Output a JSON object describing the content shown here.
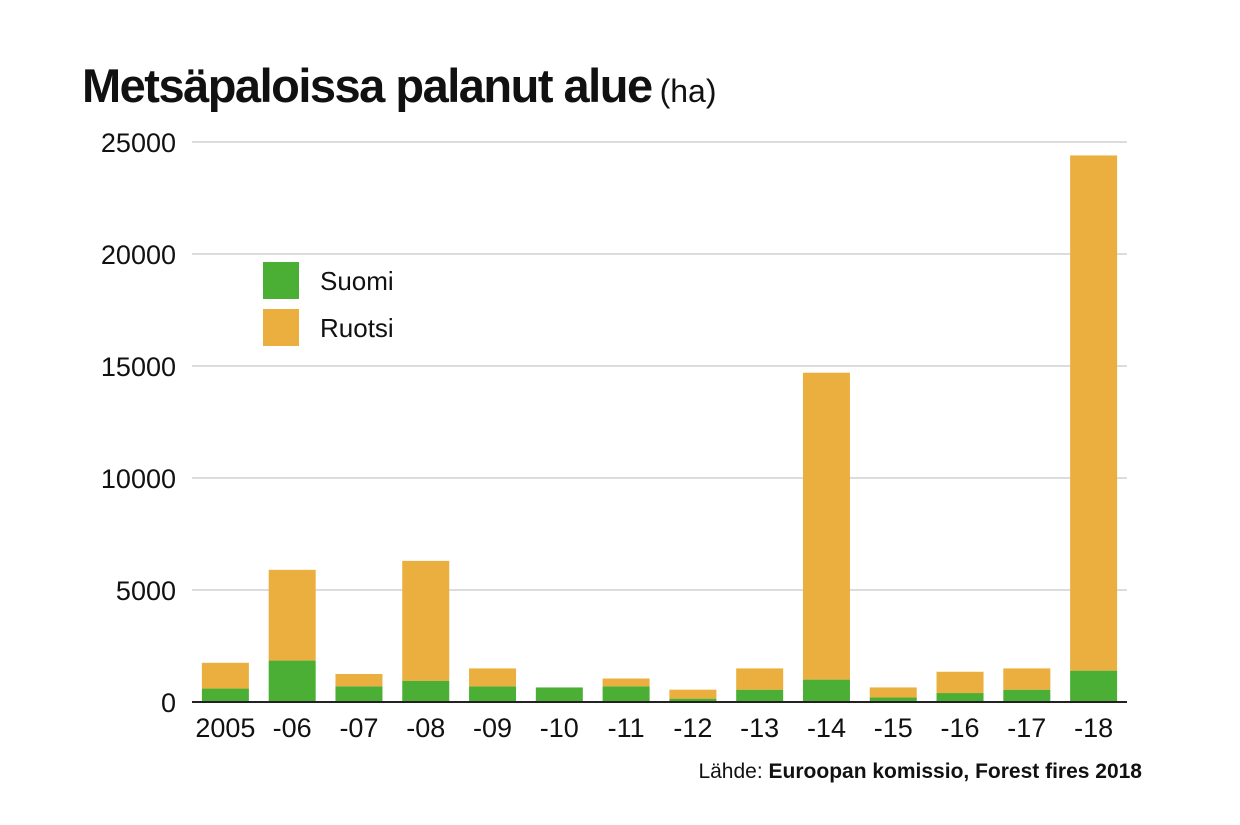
{
  "title": "Metsäpaloissa palanut alue",
  "title_unit": "(ha)",
  "source_label": "Lähde:",
  "source_value": "Euroopan komissio, Forest fires 2018",
  "colors": {
    "suomi": "#4caf35",
    "ruotsi": "#ebaf3f",
    "grid": "#c8c8c8",
    "axis": "#222222"
  },
  "chart_data": {
    "type": "bar",
    "stacked": true,
    "categories": [
      "2005",
      "-06",
      "-07",
      "-08",
      "-09",
      "-10",
      "-11",
      "-12",
      "-13",
      "-14",
      "-15",
      "-16",
      "-17",
      "-18"
    ],
    "series": [
      {
        "name": "Suomi",
        "values": [
          600,
          1850,
          700,
          950,
          700,
          650,
          700,
          150,
          550,
          1000,
          200,
          400,
          550,
          1400
        ]
      },
      {
        "name": "Ruotsi",
        "values": [
          1150,
          4050,
          550,
          5350,
          800,
          0,
          350,
          400,
          950,
          13700,
          450,
          950,
          950,
          23000
        ]
      }
    ],
    "ylim": [
      0,
      25000
    ],
    "yticks": [
      0,
      5000,
      10000,
      15000,
      20000,
      25000
    ],
    "grid": true,
    "legend_position": "top-left"
  }
}
